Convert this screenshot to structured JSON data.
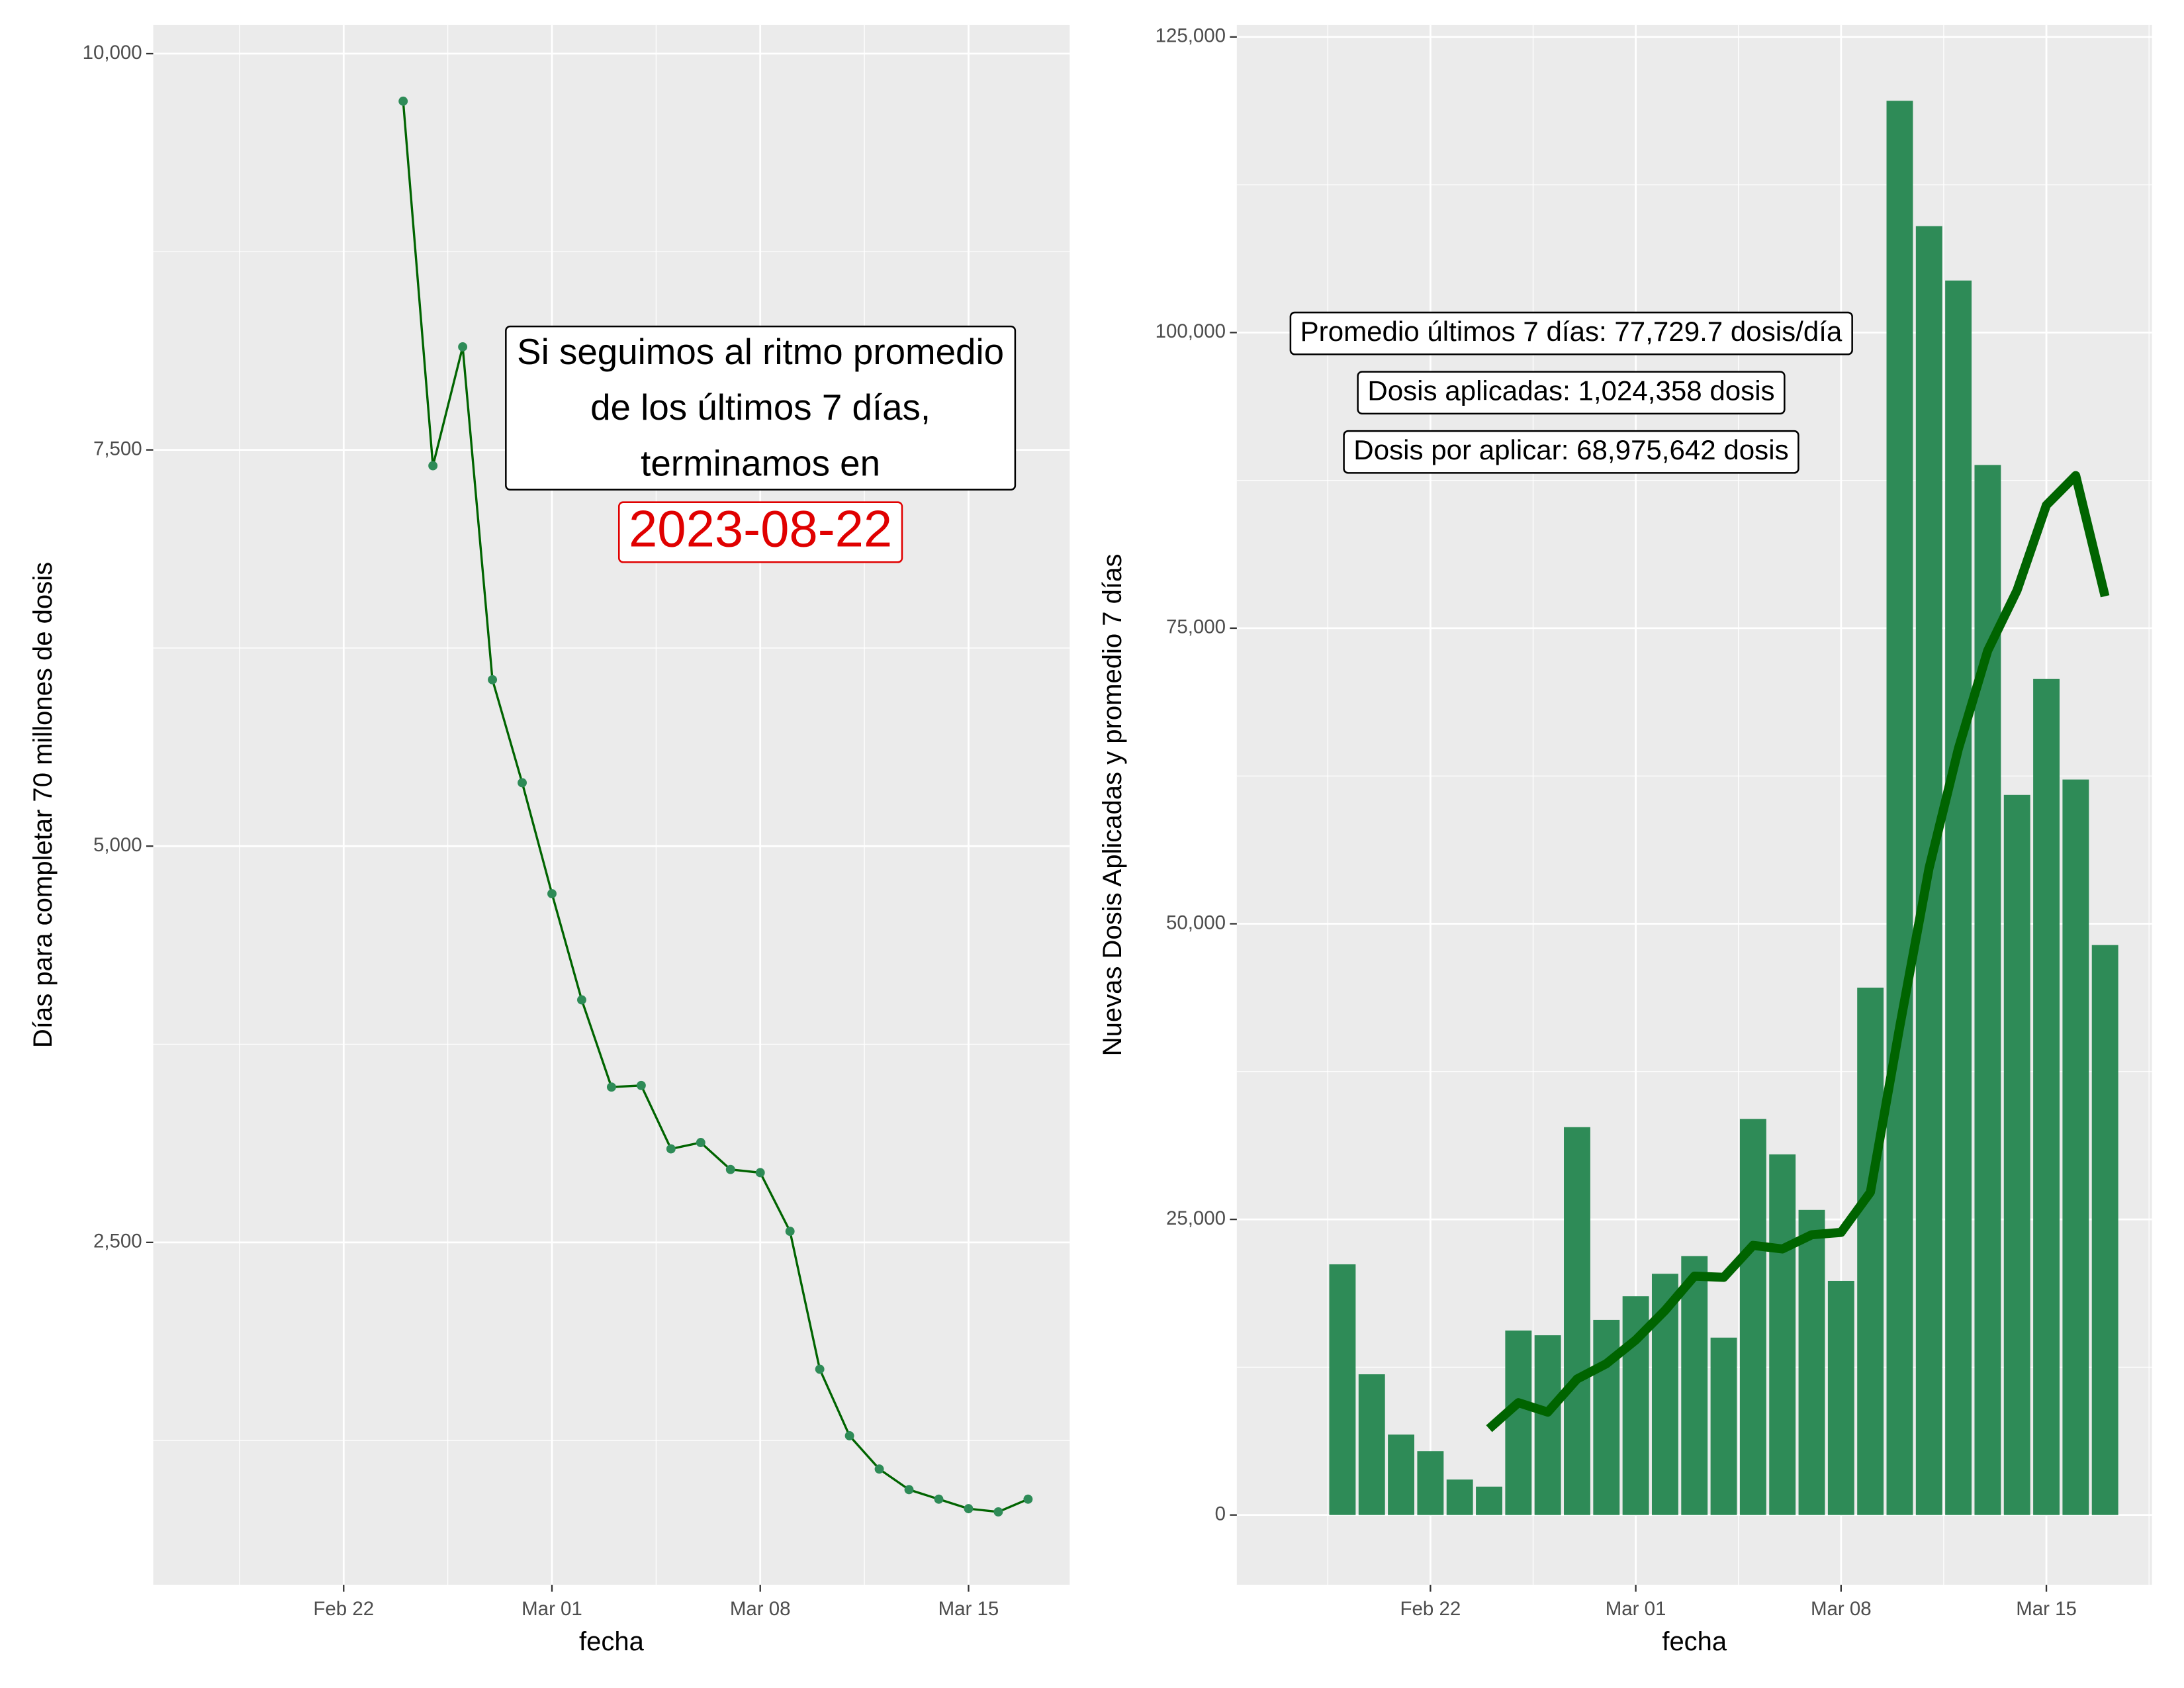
{
  "chart_data": [
    {
      "type": "line",
      "x": [
        "Feb 24",
        "Feb 25",
        "Feb 26",
        "Feb 27",
        "Feb 28",
        "Mar 01",
        "Mar 02",
        "Mar 03",
        "Mar 04",
        "Mar 05",
        "Mar 06",
        "Mar 07",
        "Mar 08",
        "Mar 09",
        "Mar 10",
        "Mar 11",
        "Mar 12",
        "Mar 13",
        "Mar 14",
        "Mar 15",
        "Mar 16",
        "Mar 17"
      ],
      "values": [
        9700,
        7400,
        8150,
        6050,
        5400,
        4700,
        4030,
        3480,
        3490,
        3090,
        3130,
        2960,
        2940,
        2570,
        1700,
        1280,
        1070,
        940,
        880,
        820,
        800,
        880
      ],
      "line_color": "#006400",
      "point_color": "#2e8b57",
      "xlim": [
        "Feb 16",
        "Mar 18"
      ],
      "xticks": [
        "Feb 22",
        "Mar 01",
        "Mar 08",
        "Mar 15"
      ],
      "ylim": [
        340,
        10180
      ],
      "yticks": [
        {
          "value": 2500,
          "label": "2,500"
        },
        {
          "value": 5000,
          "label": "5,000"
        },
        {
          "value": 7500,
          "label": "7,500"
        },
        {
          "value": 10000,
          "label": "10,000"
        }
      ],
      "grid": true,
      "x_label": "fecha",
      "y_label": "Días para completar 70 millones de dosis",
      "annotation": {
        "lines": [
          "Si seguimos al ritmo promedio",
          "de los últimos 7 días,",
          "terminamos en"
        ],
        "highlight": "2023-08-22",
        "highlight_color": "#e00000"
      }
    },
    {
      "type": "bar",
      "x": [
        "Feb 19",
        "Feb 20",
        "Feb 21",
        "Feb 22",
        "Feb 23",
        "Feb 24",
        "Feb 25",
        "Feb 26",
        "Feb 27",
        "Feb 28",
        "Mar 01",
        "Mar 02",
        "Mar 03",
        "Mar 04",
        "Mar 05",
        "Mar 06",
        "Mar 07",
        "Mar 08",
        "Mar 09",
        "Mar 10",
        "Mar 11",
        "Mar 12",
        "Mar 13",
        "Mar 14",
        "Mar 15",
        "Mar 16",
        "Mar 17"
      ],
      "series": [
        {
          "type": "bar",
          "color": "#2e8b57",
          "values": [
            21200,
            11900,
            6800,
            5400,
            3000,
            2400,
            15600,
            15200,
            32800,
            16500,
            18500,
            20400,
            21900,
            15000,
            33500,
            30500,
            25800,
            19800,
            44600,
            119600,
            109000,
            104400,
            88800,
            60900,
            70700,
            62200,
            48200
          ]
        },
        {
          "type": "line",
          "color": "#006400",
          "values": [
            null,
            null,
            null,
            null,
            null,
            7300,
            9500,
            8700,
            11500,
            12800,
            14800,
            17300,
            20200,
            20100,
            22800,
            22500,
            23700,
            23900,
            27300,
            41300,
            54700,
            64800,
            73100,
            78200,
            85400,
            87900,
            77700
          ]
        }
      ],
      "xlim": [
        "Feb 16",
        "Mar 18"
      ],
      "xticks": [
        "Feb 22",
        "Mar 01",
        "Mar 08",
        "Mar 15"
      ],
      "ylim": [
        -5900,
        126000
      ],
      "yticks": [
        0,
        {
          "value": 25000,
          "label": "25,000"
        },
        {
          "value": 50000,
          "label": "50,000"
        },
        {
          "value": 75000,
          "label": "75,000"
        },
        {
          "value": 100000,
          "label": "100,000"
        },
        {
          "value": 125000,
          "label": "125,000"
        }
      ],
      "grid": true,
      "x_label": "fecha",
      "y_label": "Nuevas Dosis Aplicadas y promedio 7 días",
      "annotations": [
        "Promedio últimos 7 días: 77,729.7 dosis/día",
        "Dosis aplicadas: 1,024,358 dosis",
        "Dosis por aplicar: 68,975,642 dosis"
      ]
    }
  ]
}
